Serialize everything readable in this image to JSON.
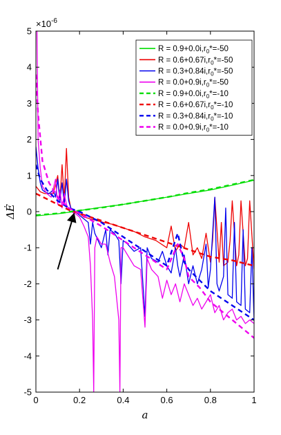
{
  "chart_data": {
    "type": "line",
    "xlabel": "a",
    "ylabel": "ΔĖ",
    "xlim": [
      0,
      1
    ],
    "ylim": [
      -5e-06,
      5e-06
    ],
    "y_exponent_label": "×10",
    "y_exponent_power": "-6",
    "x_ticks": [
      0,
      0.2,
      0.4,
      0.6,
      0.8,
      1
    ],
    "x_tick_labels": [
      "0",
      "0.2",
      "0.4",
      "0.6",
      "0.8",
      "1"
    ],
    "y_ticks": [
      -5,
      -4,
      -3,
      -2,
      -1,
      0,
      1,
      2,
      3,
      4,
      5
    ],
    "y_tick_labels": [
      "-5",
      "-4",
      "-3",
      "-2",
      "-1",
      "0",
      "1",
      "2",
      "3",
      "4",
      "5"
    ],
    "y_unit_scale": 1e-06,
    "grid": false,
    "legend_placement": "top-right",
    "annotation": {
      "type": "arrow",
      "from": [
        0.1,
        -1.6
      ],
      "to": [
        0.175,
        -0.05
      ]
    },
    "series": [
      {
        "name": "R = 0.9+0.0i,r₀*=-50",
        "legend_main": "R = 0.9+0.0i,r",
        "legend_sub": "0",
        "legend_tail": "*=-50",
        "color": "#00dd00",
        "dash": "solid",
        "x": [
          0.0,
          0.1,
          0.15,
          0.2,
          0.3,
          0.4,
          0.5,
          0.6,
          0.7,
          0.8,
          0.9,
          0.95,
          1.0
        ],
        "y": [
          -0.12,
          -0.06,
          -0.02,
          0.03,
          0.12,
          0.2,
          0.3,
          0.4,
          0.5,
          0.6,
          0.73,
          0.8,
          0.87
        ]
      },
      {
        "name": "R = 0.6+0.67i,r₀*=-50",
        "legend_main": "R = 0.6+0.67i,r",
        "legend_sub": "0",
        "legend_tail": "*=-50",
        "color": "#ee0000",
        "dash": "solid",
        "x": [
          0.0,
          0.02,
          0.04,
          0.06,
          0.08,
          0.1,
          0.11,
          0.12,
          0.13,
          0.14,
          0.15,
          0.16,
          0.18,
          0.2,
          0.22,
          0.25,
          0.28,
          0.31,
          0.35,
          0.4,
          0.45,
          0.5,
          0.55,
          0.6,
          0.62,
          0.64,
          0.66,
          0.68,
          0.7,
          0.72,
          0.74,
          0.76,
          0.78,
          0.8,
          0.81,
          0.82,
          0.84,
          0.85,
          0.86,
          0.88,
          0.89,
          0.9,
          0.92,
          0.93,
          0.94,
          0.96,
          0.97,
          0.98,
          1.0
        ],
        "y": [
          0.7,
          0.55,
          0.5,
          0.5,
          0.5,
          1.0,
          0.3,
          1.3,
          0.3,
          1.75,
          0.4,
          0.1,
          0.0,
          -0.05,
          -0.15,
          -0.2,
          -0.25,
          -0.3,
          -0.35,
          -0.45,
          -0.55,
          -0.7,
          -0.8,
          -1.0,
          -0.4,
          -1.1,
          -0.9,
          -1.0,
          -0.3,
          -1.2,
          -1.0,
          -1.3,
          -0.6,
          -1.4,
          -0.8,
          0.4,
          -1.4,
          -0.3,
          -1.5,
          -1.4,
          -0.8,
          0.3,
          -1.5,
          -1.2,
          0.3,
          -1.5,
          -1.3,
          0.3,
          -1.6
        ]
      },
      {
        "name": "R = 0.3+0.84i,r₀*=-50",
        "legend_main": "R = 0.3+0.84i,r",
        "legend_sub": "0",
        "legend_tail": "*=-50",
        "color": "#0000ee",
        "dash": "solid",
        "x": [
          0.0,
          0.01,
          0.02,
          0.03,
          0.04,
          0.06,
          0.08,
          0.09,
          0.1,
          0.11,
          0.12,
          0.13,
          0.14,
          0.15,
          0.16,
          0.18,
          0.2,
          0.22,
          0.24,
          0.25,
          0.26,
          0.27,
          0.3,
          0.32,
          0.33,
          0.34,
          0.36,
          0.38,
          0.39,
          0.4,
          0.42,
          0.45,
          0.48,
          0.5,
          0.51,
          0.53,
          0.56,
          0.58,
          0.6,
          0.62,
          0.64,
          0.65,
          0.66,
          0.68,
          0.7,
          0.72,
          0.74,
          0.76,
          0.78,
          0.79,
          0.8,
          0.82,
          0.83,
          0.84,
          0.86,
          0.87,
          0.88,
          0.9,
          0.91,
          0.92,
          0.94,
          0.95,
          0.96,
          0.98,
          0.99,
          1.0
        ],
        "y": [
          1.8,
          1.2,
          0.8,
          0.6,
          0.55,
          0.5,
          0.6,
          0.4,
          0.9,
          0.3,
          0.8,
          0.2,
          0.9,
          0.3,
          0.1,
          0.0,
          -0.1,
          -0.2,
          -0.3,
          -0.9,
          -0.3,
          -0.6,
          -1.0,
          -0.5,
          -1.2,
          -0.5,
          -0.6,
          -0.8,
          -2.0,
          -0.8,
          -0.9,
          -1.1,
          -1.0,
          -2.9,
          -1.0,
          -1.3,
          -1.4,
          -1.1,
          -1.5,
          -1.7,
          -1.0,
          -1.5,
          -1.8,
          -1.2,
          -2.0,
          -1.5,
          -2.0,
          -1.6,
          -0.9,
          -2.1,
          -1.6,
          0.4,
          -2.0,
          -2.2,
          -1.8,
          0.1,
          -2.3,
          -2.4,
          -0.3,
          -2.5,
          -2.6,
          -0.5,
          -2.7,
          -2.8,
          -1.0,
          -3.0
        ]
      },
      {
        "name": "R = 0.0+0.9i,r₀*=-50",
        "legend_main": "R = 0.0+0.9i,r",
        "legend_sub": "0",
        "legend_tail": "*=-50",
        "color": "#ee00ee",
        "dash": "solid",
        "x": [
          0.0,
          0.005,
          0.01,
          0.02,
          0.03,
          0.05,
          0.07,
          0.09,
          0.1,
          0.11,
          0.12,
          0.13,
          0.14,
          0.15,
          0.16,
          0.18,
          0.2,
          0.22,
          0.24,
          0.25,
          0.26,
          0.265,
          0.27,
          0.28,
          0.3,
          0.32,
          0.34,
          0.36,
          0.38,
          0.385,
          0.39,
          0.4,
          0.42,
          0.45,
          0.48,
          0.5,
          0.51,
          0.53,
          0.56,
          0.58,
          0.6,
          0.62,
          0.64,
          0.66,
          0.68,
          0.7,
          0.72,
          0.74,
          0.76,
          0.78,
          0.8,
          0.82,
          0.84,
          0.86,
          0.88,
          0.9,
          0.92,
          0.94,
          0.96,
          0.98,
          1.0
        ],
        "y": [
          5.0,
          5.0,
          2.0,
          1.2,
          0.7,
          0.5,
          0.4,
          0.9,
          0.2,
          0.6,
          0.1,
          0.5,
          0.2,
          0.05,
          0.0,
          -0.05,
          -0.15,
          -0.4,
          -0.7,
          -1.5,
          -3.0,
          -5.0,
          -1.0,
          -0.7,
          -0.9,
          -0.9,
          -1.4,
          -1.8,
          -3.0,
          -5.0,
          -1.0,
          -1.0,
          -1.2,
          -1.5,
          -1.6,
          -3.2,
          -1.3,
          -1.6,
          -1.8,
          -2.4,
          -1.9,
          -2.3,
          -2.0,
          -2.5,
          -2.0,
          -2.3,
          -2.6,
          -2.4,
          -2.7,
          -2.5,
          -2.3,
          -2.8,
          -2.6,
          -3.0,
          -2.8,
          -2.7,
          -3.0,
          -2.9,
          -3.1,
          -3.0,
          -3.1
        ]
      },
      {
        "name": "R = 0.9+0.0i,r₀*=-10",
        "legend_main": "R = 0.9+0.0i,r",
        "legend_sub": "0",
        "legend_tail": "*=-10",
        "color": "#00dd00",
        "dash": "dashed",
        "x": [
          0.0,
          0.1,
          0.2,
          0.3,
          0.4,
          0.5,
          0.6,
          0.7,
          0.8,
          0.9,
          1.0
        ],
        "y": [
          -0.1,
          -0.05,
          0.03,
          0.11,
          0.2,
          0.3,
          0.4,
          0.52,
          0.62,
          0.75,
          0.88
        ]
      },
      {
        "name": "R = 0.6+0.67i,r₀*=-10",
        "legend_main": "R = 0.6+0.67i,r",
        "legend_sub": "0",
        "legend_tail": "*=-10",
        "color": "#ee0000",
        "dash": "dashed",
        "x": [
          0.0,
          0.05,
          0.1,
          0.15,
          0.2,
          0.3,
          0.4,
          0.5,
          0.6,
          0.7,
          0.8,
          0.9,
          1.0
        ],
        "y": [
          0.5,
          0.35,
          0.2,
          0.05,
          -0.05,
          -0.25,
          -0.45,
          -0.65,
          -0.85,
          -1.05,
          -1.25,
          -1.35,
          -1.5
        ]
      },
      {
        "name": "R = 0.3+0.84i,r₀*=-10",
        "legend_main": "R = 0.3+0.84i,r",
        "legend_sub": "0",
        "legend_tail": "*=-10",
        "color": "#0000ee",
        "dash": "dashed",
        "x": [
          0.0,
          0.02,
          0.05,
          0.1,
          0.15,
          0.2,
          0.3,
          0.4,
          0.5,
          0.6,
          0.65,
          0.68,
          0.7,
          0.75,
          0.8,
          0.9,
          1.0
        ],
        "y": [
          1.3,
          0.9,
          0.6,
          0.3,
          0.1,
          0.0,
          -0.3,
          -0.7,
          -1.1,
          -1.5,
          -0.6,
          -1.4,
          -1.6,
          -1.9,
          -2.2,
          -2.6,
          -3.0
        ]
      },
      {
        "name": "R = 0.0+0.9i,r₀*=-10",
        "legend_main": "R = 0.0+0.9i,r",
        "legend_sub": "0",
        "legend_tail": "*=-10",
        "color": "#ee00ee",
        "dash": "dashed",
        "x": [
          0.0,
          0.01,
          0.03,
          0.06,
          0.1,
          0.15,
          0.2,
          0.3,
          0.4,
          0.5,
          0.6,
          0.65,
          0.68,
          0.7,
          0.75,
          0.8,
          0.9,
          1.0
        ],
        "y": [
          3.8,
          2.7,
          1.4,
          0.8,
          0.4,
          0.1,
          -0.05,
          -0.4,
          -0.8,
          -1.2,
          -1.6,
          -0.9,
          -1.3,
          -1.8,
          -2.1,
          -2.5,
          -3.0,
          -3.5
        ]
      }
    ]
  }
}
